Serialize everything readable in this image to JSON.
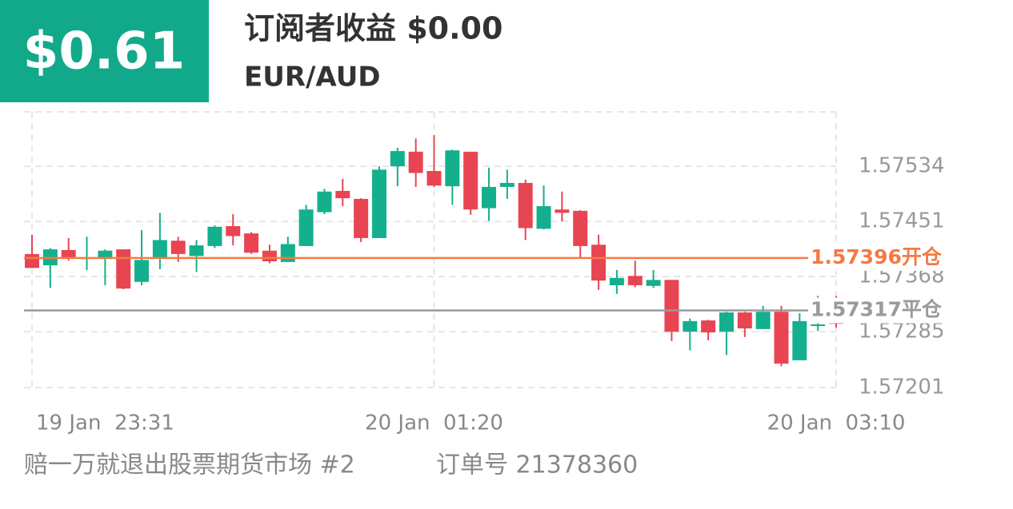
{
  "header": {
    "badge": "$0.61",
    "title": "订阅者收益 $0.00",
    "symbol": "EUR/AUD"
  },
  "chart_data": {
    "type": "candlestick",
    "categories": [
      "19 Jan  23:31",
      null,
      null,
      null,
      null,
      null,
      null,
      null,
      null,
      null,
      null,
      null,
      null,
      null,
      null,
      null,
      null,
      null,
      null,
      null,
      null,
      null,
      "20 Jan  01:20",
      null,
      null,
      null,
      null,
      null,
      null,
      null,
      null,
      null,
      null,
      null,
      null,
      null,
      null,
      null,
      null,
      null,
      null,
      null,
      null,
      null,
      "20 Jan  03:10"
    ],
    "open": [
      1.57402,
      1.57385,
      1.57408,
      1.57395,
      1.57397,
      1.57409,
      1.5736,
      1.57397,
      1.57422,
      1.57399,
      1.57414,
      1.57444,
      1.57433,
      1.57407,
      1.5739,
      1.57414,
      1.57465,
      1.57497,
      1.57485,
      1.57426,
      1.57534,
      1.57556,
      1.57527,
      1.57504,
      1.57556,
      1.57471,
      1.57503,
      1.57509,
      1.5744,
      1.57469,
      1.57467,
      1.57416,
      1.57355,
      1.57369,
      1.57354,
      1.57363,
      1.57285,
      1.57302,
      1.57285,
      1.57314,
      1.57289,
      1.57315,
      1.57242,
      1.57295,
      1.57302
    ],
    "high": [
      1.57431,
      1.57411,
      1.57426,
      1.57428,
      1.57409,
      1.57409,
      1.57438,
      1.57464,
      1.57428,
      1.57423,
      1.57445,
      1.57462,
      1.57435,
      1.57416,
      1.57428,
      1.57476,
      1.575,
      1.57515,
      1.57486,
      1.57534,
      1.57562,
      1.57576,
      1.57581,
      1.57559,
      1.57556,
      1.57532,
      1.57529,
      1.57514,
      1.57505,
      1.57496,
      1.57468,
      1.57431,
      1.57378,
      1.57392,
      1.57378,
      1.57363,
      1.57305,
      1.57303,
      1.57315,
      1.57315,
      1.57324,
      1.57324,
      1.57313,
      1.57339,
      1.57339
    ],
    "low": [
      1.57381,
      1.57351,
      1.57392,
      1.57378,
      1.57355,
      1.57349,
      1.57355,
      1.57379,
      1.5739,
      1.57375,
      1.57411,
      1.57415,
      1.57402,
      1.57388,
      1.5739,
      1.57414,
      1.57462,
      1.57474,
      1.5742,
      1.57426,
      1.57504,
      1.57503,
      1.57503,
      1.57476,
      1.57461,
      1.57452,
      1.57485,
      1.57423,
      1.57439,
      1.57451,
      1.57395,
      1.57348,
      1.57342,
      1.57352,
      1.57351,
      1.57271,
      1.57257,
      1.57272,
      1.5725,
      1.57277,
      1.57289,
      1.57233,
      1.57242,
      1.57286,
      1.57291
    ],
    "close": [
      1.57381,
      1.57409,
      1.57395,
      1.57397,
      1.57407,
      1.5735,
      1.57393,
      1.57423,
      1.57402,
      1.57415,
      1.57443,
      1.57429,
      1.57404,
      1.57391,
      1.57417,
      1.57469,
      1.57496,
      1.57486,
      1.57426,
      1.57529,
      1.57557,
      1.57524,
      1.57505,
      1.57558,
      1.57469,
      1.57503,
      1.57509,
      1.57441,
      1.57474,
      1.57464,
      1.57414,
      1.57362,
      1.57366,
      1.57355,
      1.57363,
      1.57285,
      1.57301,
      1.57284,
      1.57314,
      1.5729,
      1.57315,
      1.57237,
      1.57301,
      1.57296,
      1.57297
    ],
    "up_color": "#14b08e",
    "down_color": "#e84552",
    "ylim": [
      1.57197,
      1.57616
    ],
    "yticks": [
      1.57201,
      1.57285,
      1.57368,
      1.57451,
      1.57534
    ],
    "grid": true,
    "lines": [
      {
        "value": 1.57396,
        "label": "1.57396开仓",
        "color": "#f47a42"
      },
      {
        "value": 1.57317,
        "label": "1.57317平仓",
        "color": "#9a9a9a"
      }
    ]
  },
  "footer": {
    "name": "赔一万就退出股票期货市场 #2",
    "order": "订单号 21378360"
  }
}
